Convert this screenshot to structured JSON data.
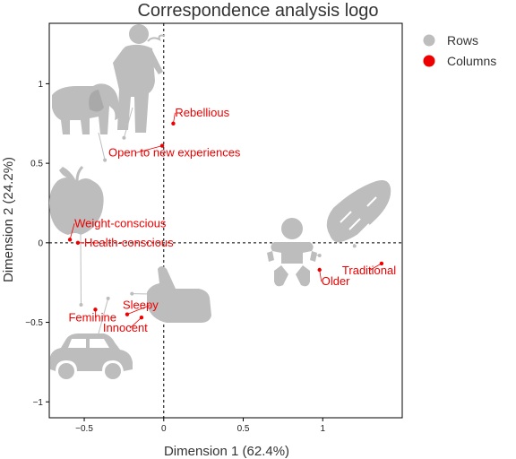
{
  "chart_data": {
    "type": "scatter",
    "title": "Correspondence analysis logo",
    "xlabel": "Dimension 1 (62.4%)",
    "ylabel": "Dimension 2 (24.2%)",
    "xlim": [
      -0.72,
      1.5
    ],
    "ylim": [
      -1.1,
      1.38
    ],
    "x_ticks": [
      -0.5,
      0,
      0.5,
      1
    ],
    "x_tick_labels": [
      "−0.5",
      "0",
      "0.5",
      "1"
    ],
    "y_ticks": [
      -1,
      -0.5,
      0,
      0.5,
      1
    ],
    "y_tick_labels": [
      "−1",
      "−0.5",
      "0",
      "0.5",
      "1"
    ],
    "reference_lines": [
      0,
      0
    ],
    "legend": {
      "position": "right",
      "entries": [
        {
          "label": "Rows",
          "color": "#bdbdbd"
        },
        {
          "label": "Columns",
          "color": "#ee0000"
        }
      ]
    },
    "series": [
      {
        "name": "Columns",
        "color": "#ee0000",
        "points": [
          {
            "label": "Rebellious",
            "x": 0.06,
            "y": 0.75
          },
          {
            "label": "Open to new experiences",
            "x": -0.01,
            "y": 0.61
          },
          {
            "label": "Weight-conscious",
            "x": -0.59,
            "y": 0.02
          },
          {
            "label": "Health-conscious",
            "x": -0.54,
            "y": 0.0
          },
          {
            "label": "Traditional",
            "x": 1.37,
            "y": -0.13
          },
          {
            "label": "Older",
            "x": 0.98,
            "y": -0.17
          },
          {
            "label": "Feminine",
            "x": -0.43,
            "y": -0.42
          },
          {
            "label": "Sleepy",
            "x": -0.23,
            "y": -0.45
          },
          {
            "label": "Innocent",
            "x": -0.14,
            "y": -0.47
          }
        ]
      },
      {
        "name": "Rows",
        "color": "#bdbdbd",
        "points": [
          {
            "icon": "elephant-smoker-icon",
            "x": -0.25,
            "y": 0.66
          },
          {
            "icon": "elephant-icon",
            "x": -0.37,
            "y": 0.52
          },
          {
            "icon": "apple-icon",
            "x": -0.52,
            "y": -0.39
          },
          {
            "icon": "baby-icon",
            "x": 0.98,
            "y": -0.08
          },
          {
            "icon": "bread-icon",
            "x": 1.2,
            "y": -0.02
          },
          {
            "icon": "thumbs-up-icon",
            "x": -0.2,
            "y": -0.32
          },
          {
            "icon": "car-icon",
            "x": -0.35,
            "y": -0.35
          }
        ]
      }
    ]
  }
}
